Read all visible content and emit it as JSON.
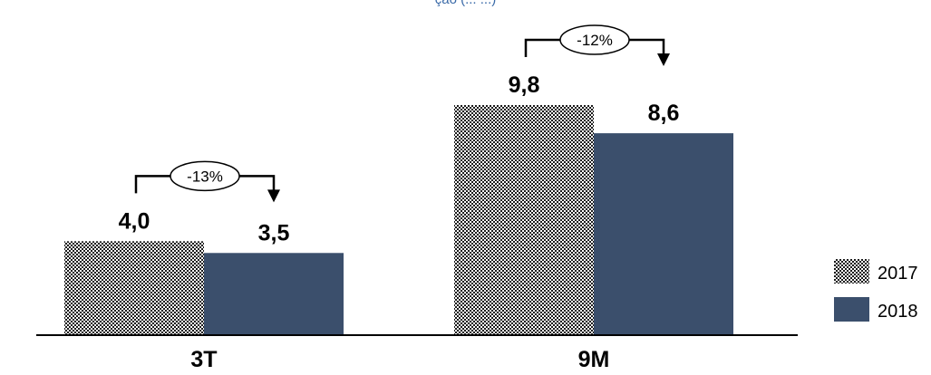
{
  "header": {
    "cut_text": "ção (... ...)"
  },
  "chart_data": {
    "type": "bar",
    "title": "",
    "categories": [
      "3T",
      "9M"
    ],
    "series": [
      {
        "name": "2017",
        "values": [
          4.0,
          9.8
        ],
        "labels": [
          "4,0",
          "9,8"
        ],
        "pattern": "crosshatch"
      },
      {
        "name": "2018",
        "values": [
          3.5,
          8.6
        ],
        "labels": [
          "3,5",
          "8,6"
        ],
        "color": "#3b4f6c"
      }
    ],
    "changes": [
      "-13%",
      "-12%"
    ],
    "ylim": [
      0,
      9.8
    ],
    "xlabel": "",
    "ylabel": "",
    "legend": "right",
    "grid": false
  },
  "colors": {
    "series_2018": "#3b4f6c",
    "hatch_dark": "#1a1a1a",
    "hatch_light": "#ffffff"
  }
}
